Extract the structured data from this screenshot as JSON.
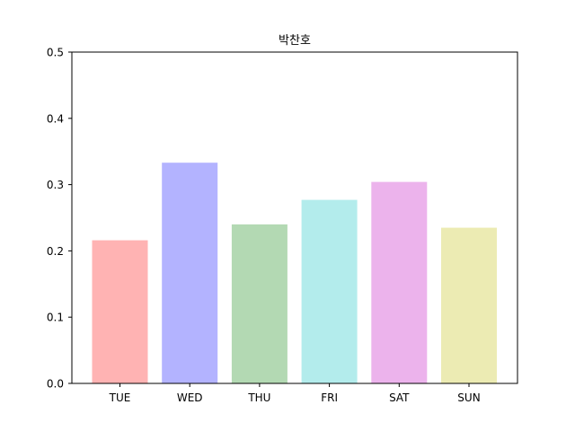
{
  "chart_data": {
    "type": "bar",
    "title": "박찬호",
    "xlabel": "",
    "ylabel": "",
    "categories": [
      "TUE",
      "WED",
      "THU",
      "FRI",
      "SAT",
      "SUN"
    ],
    "values": [
      0.216,
      0.333,
      0.24,
      0.277,
      0.304,
      0.235
    ],
    "colors": [
      "#ffb3b3",
      "#b3b3ff",
      "#b3d9b3",
      "#b3ecec",
      "#ecb3ec",
      "#ecebb3"
    ],
    "ylim": [
      0,
      0.5
    ],
    "yticks": [
      0.0,
      0.1,
      0.2,
      0.3,
      0.4,
      0.5
    ],
    "ytick_labels": [
      "0.0",
      "0.1",
      "0.2",
      "0.3",
      "0.4",
      "0.5"
    ],
    "grid": false,
    "legend": "none"
  }
}
